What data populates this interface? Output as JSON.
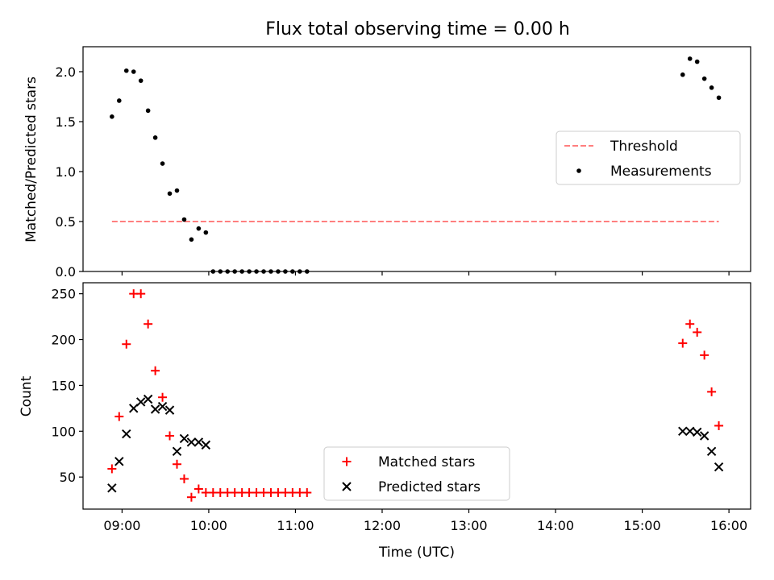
{
  "chart_data": [
    {
      "type": "scatter",
      "title": "Flux total observing time = 0.00 h",
      "xlabel": "",
      "ylabel": "Matched/Predicted stars",
      "xlim": [
        "08:33",
        "16:15"
      ],
      "ylim": [
        0,
        2.25
      ],
      "x_tick_labels": [
        "09:00",
        "10:00",
        "11:00",
        "12:00",
        "13:00",
        "14:00",
        "15:00",
        "16:00"
      ],
      "y_ticks": [
        "0.0",
        "0.5",
        "1.0",
        "1.5",
        "2.0"
      ],
      "legend_position": "center-right",
      "series": [
        {
          "name": "Threshold",
          "style": "dashed-line",
          "color": "#ff7f7f",
          "x": [
            "08:53",
            "15:53"
          ],
          "y": [
            0.5,
            0.5
          ]
        },
        {
          "name": "Measurements",
          "style": "dot",
          "color": "#000000",
          "x": [
            "08:53",
            "08:58",
            "09:03",
            "09:08",
            "09:13",
            "09:18",
            "09:23",
            "09:28",
            "09:33",
            "09:38",
            "09:43",
            "09:48",
            "09:53",
            "09:58",
            "10:03",
            "10:08",
            "10:13",
            "10:18",
            "10:23",
            "10:28",
            "10:33",
            "10:38",
            "10:43",
            "10:48",
            "10:53",
            "10:58",
            "11:03",
            "11:08",
            "15:28",
            "15:33",
            "15:38",
            "15:43",
            "15:48",
            "15:53"
          ],
          "y": [
            1.55,
            1.71,
            2.01,
            2.0,
            1.91,
            1.61,
            1.34,
            1.08,
            0.78,
            0.81,
            0.52,
            0.32,
            0.43,
            0.39,
            0.0,
            0.0,
            0.0,
            0.0,
            0.0,
            0.0,
            0.0,
            0.0,
            0.0,
            0.0,
            0.0,
            0.0,
            0.0,
            0.0,
            1.97,
            2.13,
            2.1,
            1.93,
            1.84,
            1.74
          ]
        }
      ]
    },
    {
      "type": "scatter",
      "title": "",
      "xlabel": "Time (UTC)",
      "ylabel": "Count",
      "xlim": [
        "08:33",
        "16:15"
      ],
      "ylim": [
        15,
        262
      ],
      "x_tick_labels": [
        "09:00",
        "10:00",
        "11:00",
        "12:00",
        "13:00",
        "14:00",
        "15:00",
        "16:00"
      ],
      "y_ticks": [
        "50",
        "100",
        "150",
        "200",
        "250"
      ],
      "legend_position": "lower-center",
      "series": [
        {
          "name": "Matched stars",
          "style": "plus",
          "color": "#ff0000",
          "x": [
            "08:53",
            "08:58",
            "09:03",
            "09:08",
            "09:13",
            "09:18",
            "09:23",
            "09:28",
            "09:33",
            "09:38",
            "09:43",
            "09:48",
            "09:53",
            "09:58",
            "10:03",
            "10:08",
            "10:13",
            "10:18",
            "10:23",
            "10:28",
            "10:33",
            "10:38",
            "10:43",
            "10:48",
            "10:53",
            "10:58",
            "11:03",
            "11:08",
            "15:28",
            "15:33",
            "15:38",
            "15:43",
            "15:48",
            "15:53"
          ],
          "y": [
            59,
            116,
            195,
            250,
            250,
            217,
            166,
            137,
            95,
            64,
            48,
            28,
            37,
            33,
            33,
            33,
            33,
            33,
            33,
            33,
            33,
            33,
            33,
            33,
            33,
            33,
            33,
            33,
            196,
            217,
            208,
            183,
            143,
            106
          ]
        },
        {
          "name": "Predicted stars",
          "style": "x",
          "color": "#000000",
          "x": [
            "08:53",
            "08:58",
            "09:03",
            "09:08",
            "09:13",
            "09:18",
            "09:23",
            "09:28",
            "09:33",
            "09:38",
            "09:43",
            "09:48",
            "09:53",
            "09:58",
            "15:28",
            "15:33",
            "15:38",
            "15:43",
            "15:48",
            "15:53"
          ],
          "y": [
            38,
            67,
            97,
            125,
            132,
            135,
            124,
            127,
            123,
            78,
            92,
            88,
            88,
            85,
            100,
            100,
            99,
            95,
            78,
            61
          ]
        }
      ]
    }
  ]
}
